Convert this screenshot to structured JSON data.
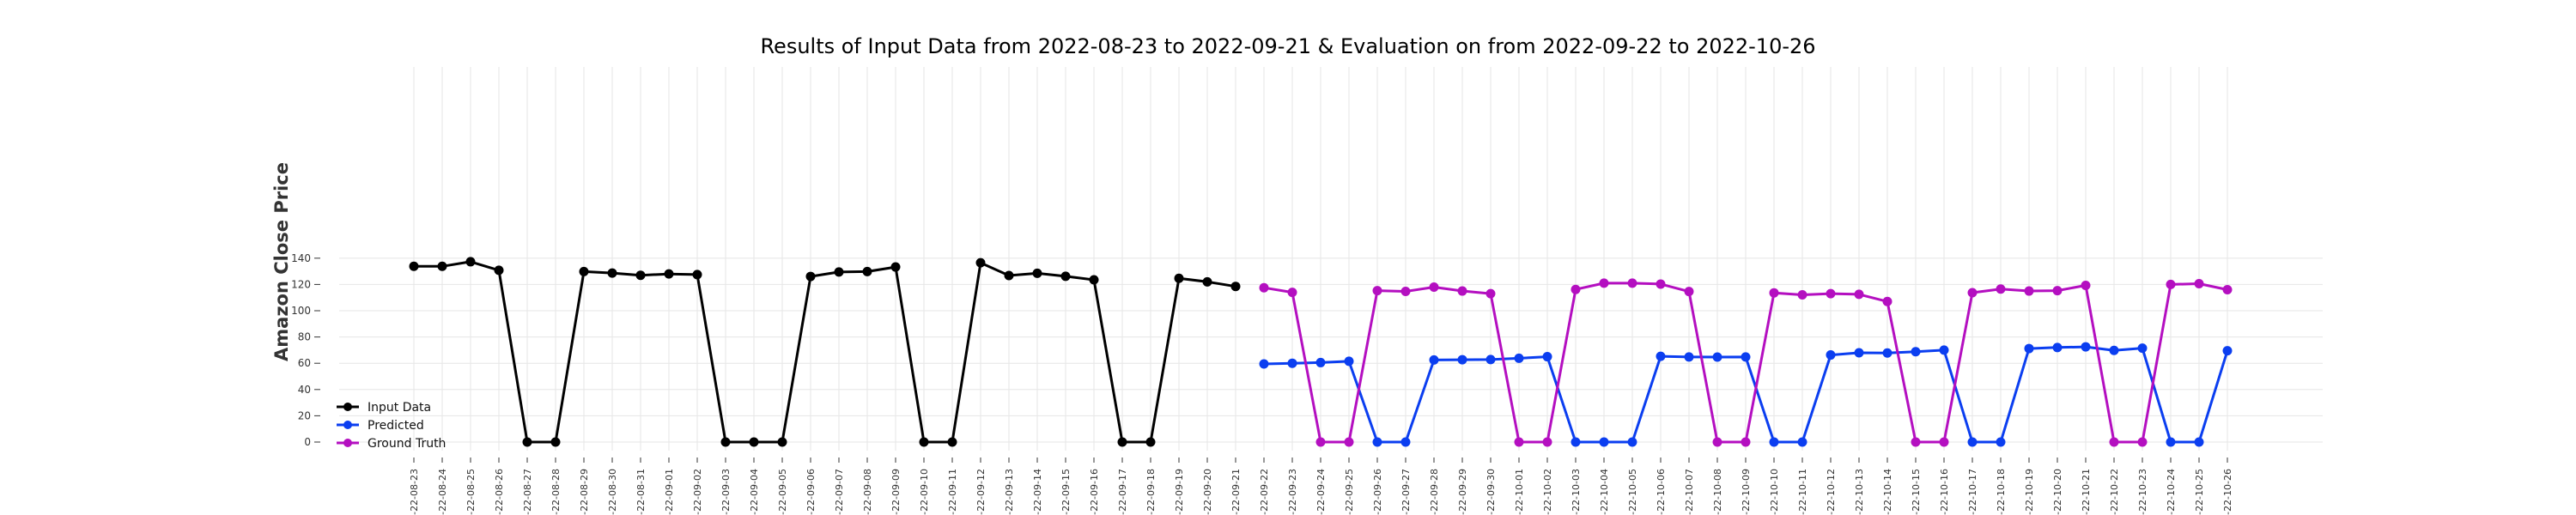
{
  "chart_data": {
    "type": "line",
    "title": "Results of Input Data from 2022-08-23 to 2022-09-21 & Evaluation on from 2022-09-22 to 2022-10-26",
    "xlabel": "",
    "ylabel": "Amazon Close Price",
    "ylim": [
      -2,
      145
    ],
    "y_ticks": [
      0,
      20,
      40,
      60,
      80,
      100,
      120,
      140
    ],
    "grid": true,
    "legend_position": "bottom-left",
    "x": [
      "2022-08-23",
      "2022-08-24",
      "2022-08-25",
      "2022-08-26",
      "2022-08-27",
      "2022-08-28",
      "2022-08-29",
      "2022-08-30",
      "2022-08-31",
      "2022-09-01",
      "2022-09-02",
      "2022-09-03",
      "2022-09-04",
      "2022-09-05",
      "2022-09-06",
      "2022-09-07",
      "2022-09-08",
      "2022-09-09",
      "2022-09-10",
      "2022-09-11",
      "2022-09-12",
      "2022-09-13",
      "2022-09-14",
      "2022-09-15",
      "2022-09-16",
      "2022-09-17",
      "2022-09-18",
      "2022-09-19",
      "2022-09-20",
      "2022-09-21",
      "2022-09-22",
      "2022-09-23",
      "2022-09-24",
      "2022-09-25",
      "2022-09-26",
      "2022-09-27",
      "2022-09-28",
      "2022-09-29",
      "2022-09-30",
      "2022-10-01",
      "2022-10-02",
      "2022-10-03",
      "2022-10-04",
      "2022-10-05",
      "2022-10-06",
      "2022-10-07",
      "2022-10-08",
      "2022-10-09",
      "2022-10-10",
      "2022-10-11",
      "2022-10-12",
      "2022-10-13",
      "2022-10-14",
      "2022-10-15",
      "2022-10-16",
      "2022-10-17",
      "2022-10-18",
      "2022-10-19",
      "2022-10-20",
      "2022-10-21",
      "2022-10-22",
      "2022-10-23",
      "2022-10-24",
      "2022-10-25",
      "2022-10-26"
    ],
    "x_tick_labels": [
      "-22-08-23",
      "-22-08-24",
      "-22-08-25",
      "-22-08-26",
      "-22-08-27",
      "-22-08-28",
      "-22-08-29",
      "-22-08-30",
      "-22-08-31",
      "-22-09-01",
      "-22-09-02",
      "-22-09-03",
      "-22-09-04",
      "-22-09-05",
      "-22-09-06",
      "-22-09-07",
      "-22-09-08",
      "-22-09-09",
      "-22-09-10",
      "-22-09-11",
      "-22-09-12",
      "-22-09-13",
      "-22-09-14",
      "-22-09-15",
      "-22-09-16",
      "-22-09-17",
      "-22-09-18",
      "-22-09-19",
      "-22-09-20",
      "-22-09-21",
      "-22-09-22",
      "-22-09-23",
      "-22-09-24",
      "-22-09-25",
      "-22-09-26",
      "-22-09-27",
      "-22-09-28",
      "-22-09-29",
      "-22-09-30",
      "-22-10-01",
      "-22-10-02",
      "-22-10-03",
      "-22-10-04",
      "-22-10-05",
      "-22-10-06",
      "-22-10-07",
      "-22-10-08",
      "-22-10-09",
      "-22-10-10",
      "-22-10-11",
      "-22-10-12",
      "-22-10-13",
      "-22-10-14",
      "-22-10-15",
      "-22-10-16",
      "-22-10-17",
      "-22-10-18",
      "-22-10-19",
      "-22-10-20",
      "-22-10-21",
      "-22-10-22",
      "-22-10-23",
      "-22-10-24",
      "-22-10-25",
      "-22-10-26"
    ],
    "series": [
      {
        "name": "Input Data",
        "color": "#000000",
        "x": [
          "2022-08-23",
          "2022-08-24",
          "2022-08-25",
          "2022-08-26",
          "2022-08-27",
          "2022-08-28",
          "2022-08-29",
          "2022-08-30",
          "2022-08-31",
          "2022-09-01",
          "2022-09-02",
          "2022-09-03",
          "2022-09-04",
          "2022-09-05",
          "2022-09-06",
          "2022-09-07",
          "2022-09-08",
          "2022-09-09",
          "2022-09-10",
          "2022-09-11",
          "2022-09-12",
          "2022-09-13",
          "2022-09-14",
          "2022-09-15",
          "2022-09-16",
          "2022-09-17",
          "2022-09-18",
          "2022-09-19",
          "2022-09-20",
          "2022-09-21"
        ],
        "values": [
          133.8,
          133.8,
          137.3,
          130.8,
          0,
          0,
          129.8,
          128.7,
          127.0,
          128.0,
          127.5,
          0,
          0,
          0,
          126.1,
          129.5,
          129.8,
          133.3,
          0,
          0,
          136.5,
          126.8,
          128.5,
          126.2,
          123.5,
          0,
          0,
          124.7,
          122.0,
          118.5
        ]
      },
      {
        "name": "Predicted",
        "color": "#0b3ef0",
        "x": [
          "2022-09-22",
          "2022-09-23",
          "2022-09-24",
          "2022-09-25",
          "2022-09-26",
          "2022-09-27",
          "2022-09-28",
          "2022-09-29",
          "2022-09-30",
          "2022-10-01",
          "2022-10-02",
          "2022-10-03",
          "2022-10-04",
          "2022-10-05",
          "2022-10-06",
          "2022-10-07",
          "2022-10-08",
          "2022-10-09",
          "2022-10-10",
          "2022-10-11",
          "2022-10-12",
          "2022-10-13",
          "2022-10-14",
          "2022-10-15",
          "2022-10-16",
          "2022-10-17",
          "2022-10-18",
          "2022-10-19",
          "2022-10-20",
          "2022-10-21",
          "2022-10-22",
          "2022-10-23",
          "2022-10-24",
          "2022-10-25",
          "2022-10-26"
        ],
        "values": [
          59.5,
          60.0,
          60.5,
          61.5,
          0,
          0,
          62.5,
          62.7,
          62.8,
          63.8,
          65.0,
          0,
          0,
          0,
          65.3,
          64.8,
          64.7,
          64.8,
          0,
          0,
          66.3,
          68.0,
          67.8,
          68.8,
          70.0,
          0,
          0,
          71.2,
          72.0,
          72.5,
          69.8,
          71.5,
          0,
          0,
          69.5
        ]
      },
      {
        "name": "Ground Truth",
        "color": "#b40fc0",
        "x": [
          "2022-09-22",
          "2022-09-23",
          "2022-09-24",
          "2022-09-25",
          "2022-09-26",
          "2022-09-27",
          "2022-09-28",
          "2022-09-29",
          "2022-09-30",
          "2022-10-01",
          "2022-10-02",
          "2022-10-03",
          "2022-10-04",
          "2022-10-05",
          "2022-10-06",
          "2022-10-07",
          "2022-10-08",
          "2022-10-09",
          "2022-10-10",
          "2022-10-11",
          "2022-10-12",
          "2022-10-13",
          "2022-10-14",
          "2022-10-15",
          "2022-10-16",
          "2022-10-17",
          "2022-10-18",
          "2022-10-19",
          "2022-10-20",
          "2022-10-21",
          "2022-10-22",
          "2022-10-23",
          "2022-10-24",
          "2022-10-25",
          "2022-10-26"
        ],
        "values": [
          117.5,
          114.0,
          0,
          0,
          115.3,
          114.7,
          118.0,
          115.0,
          113.0,
          0,
          0,
          116.2,
          121.0,
          121.0,
          120.3,
          114.6,
          0,
          0,
          113.6,
          112.1,
          113.0,
          112.5,
          107.0,
          0,
          0,
          113.7,
          116.5,
          115.0,
          115.3,
          119.3,
          0,
          0,
          120.0,
          120.6,
          116.0
        ]
      }
    ]
  }
}
